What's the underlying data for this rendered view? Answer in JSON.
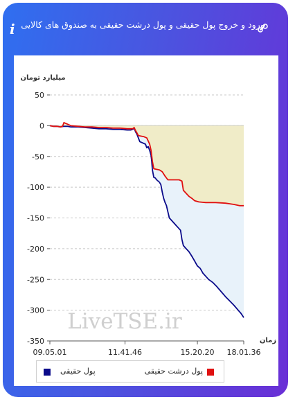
{
  "header": {
    "title": "ورود و خروج پول حقیقی و پول درشت حقیقی به صندوق های کالایی",
    "info_glyph": "i",
    "link_icon": "link-icon"
  },
  "colors": {
    "frame_start": "#2f6ff0",
    "frame_end": "#6a2fd6",
    "real_money": "#0a0a8a",
    "big_real_money": "#e01010",
    "big_area_fill": "#f0ecc8",
    "real_area_fill": "#e8f2fa"
  },
  "chart_data": {
    "type": "line",
    "ylabel": "میلیارد تومان",
    "xlabel": "زمان",
    "ylim": [
      -350,
      50
    ],
    "y_ticks": [
      50,
      0,
      -50,
      -100,
      -150,
      -200,
      -250,
      -300,
      -350
    ],
    "x_ticks": [
      "09.05.01",
      "11.41.46",
      "15.20.20",
      "18.01.36"
    ],
    "watermark": "LiveTSE.ir",
    "grid": "horizontal dashed",
    "legend_position": "bottom",
    "series": [
      {
        "name": "پول حقیقی",
        "color": "#0a0a8a",
        "area": true,
        "points": [
          [
            0,
            0
          ],
          [
            5,
            -1
          ],
          [
            10,
            -1
          ],
          [
            15,
            -2
          ],
          [
            20,
            -1
          ],
          [
            25,
            -1
          ],
          [
            30,
            -2
          ],
          [
            40,
            -2
          ],
          [
            50,
            -3
          ],
          [
            60,
            -4
          ],
          [
            70,
            -5
          ],
          [
            80,
            -5
          ],
          [
            90,
            -6
          ],
          [
            100,
            -6
          ],
          [
            110,
            -7
          ],
          [
            115,
            -7
          ],
          [
            118,
            -6
          ],
          [
            120,
            -4
          ],
          [
            122,
            -10
          ],
          [
            124,
            -14
          ],
          [
            126,
            -20
          ],
          [
            128,
            -26
          ],
          [
            132,
            -28
          ],
          [
            136,
            -30
          ],
          [
            138,
            -36
          ],
          [
            140,
            -34
          ],
          [
            142,
            -40
          ],
          [
            144,
            -48
          ],
          [
            145,
            -58
          ],
          [
            146,
            -72
          ],
          [
            148,
            -84
          ],
          [
            150,
            -85
          ],
          [
            152,
            -88
          ],
          [
            156,
            -92
          ],
          [
            158,
            -96
          ],
          [
            160,
            -108
          ],
          [
            162,
            -118
          ],
          [
            164,
            -125
          ],
          [
            166,
            -130
          ],
          [
            168,
            -140
          ],
          [
            170,
            -150
          ],
          [
            174,
            -155
          ],
          [
            178,
            -160
          ],
          [
            182,
            -165
          ],
          [
            186,
            -170
          ],
          [
            188,
            -185
          ],
          [
            190,
            -195
          ],
          [
            194,
            -200
          ],
          [
            198,
            -205
          ],
          [
            202,
            -212
          ],
          [
            206,
            -220
          ],
          [
            210,
            -228
          ],
          [
            214,
            -232
          ],
          [
            218,
            -240
          ],
          [
            222,
            -245
          ],
          [
            226,
            -250
          ],
          [
            232,
            -255
          ],
          [
            238,
            -262
          ],
          [
            244,
            -270
          ],
          [
            250,
            -278
          ],
          [
            256,
            -285
          ],
          [
            262,
            -292
          ],
          [
            268,
            -300
          ],
          [
            272,
            -305
          ],
          [
            276,
            -312
          ]
        ]
      },
      {
        "name": "پول درشت حقیقی",
        "color": "#e01010",
        "area": true,
        "points": [
          [
            0,
            0
          ],
          [
            5,
            -1
          ],
          [
            10,
            -1
          ],
          [
            15,
            -2
          ],
          [
            18,
            -1
          ],
          [
            20,
            5
          ],
          [
            22,
            4
          ],
          [
            26,
            2
          ],
          [
            30,
            0
          ],
          [
            40,
            -1
          ],
          [
            50,
            -2
          ],
          [
            60,
            -2
          ],
          [
            70,
            -3
          ],
          [
            80,
            -3
          ],
          [
            90,
            -4
          ],
          [
            100,
            -4
          ],
          [
            110,
            -5
          ],
          [
            118,
            -5
          ],
          [
            120,
            -3
          ],
          [
            122,
            -8
          ],
          [
            124,
            -12
          ],
          [
            126,
            -16
          ],
          [
            130,
            -17
          ],
          [
            134,
            -18
          ],
          [
            138,
            -20
          ],
          [
            142,
            -30
          ],
          [
            144,
            -40
          ],
          [
            146,
            -58
          ],
          [
            148,
            -70
          ],
          [
            156,
            -72
          ],
          [
            160,
            -75
          ],
          [
            164,
            -82
          ],
          [
            168,
            -88
          ],
          [
            176,
            -88
          ],
          [
            184,
            -88
          ],
          [
            188,
            -90
          ],
          [
            190,
            -105
          ],
          [
            194,
            -110
          ],
          [
            198,
            -115
          ],
          [
            202,
            -118
          ],
          [
            206,
            -122
          ],
          [
            212,
            -124
          ],
          [
            222,
            -125
          ],
          [
            236,
            -125
          ],
          [
            250,
            -126
          ],
          [
            262,
            -128
          ],
          [
            270,
            -130
          ],
          [
            276,
            -130
          ]
        ]
      }
    ],
    "x_tick_positions": [
      0,
      107,
      210,
      276
    ]
  }
}
